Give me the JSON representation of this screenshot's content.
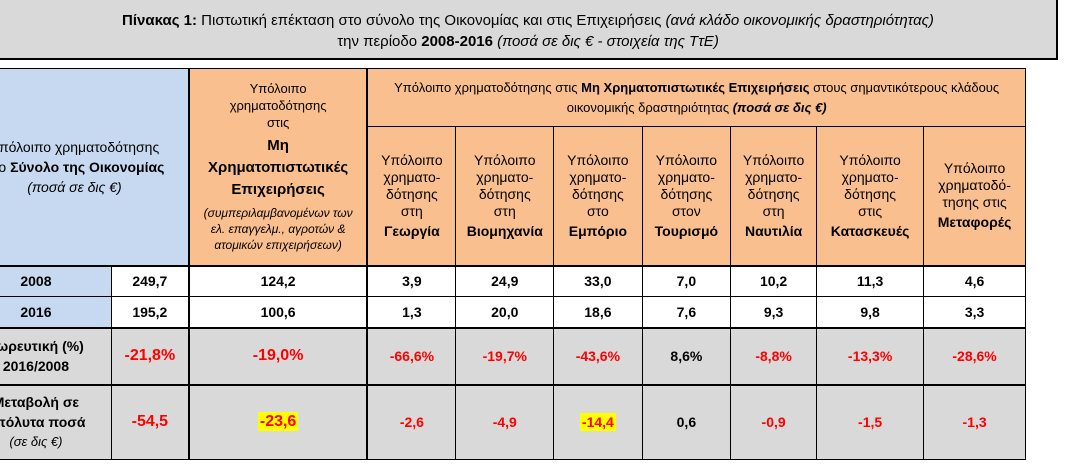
{
  "title": {
    "prefix": "Πίνακας 1:",
    "main": " Πιστωτική επέκταση στο σύνολο της Οικονομίας και στις Επιχειρήσεις ",
    "paren1": "(ανά κλάδο οικονομικής δραστηριότητας)",
    "line2_pre": "την περίοδο ",
    "period": "2008-2016",
    "paren2": " (ποσά σε δις € - στοιχεία της ΤτΕ)"
  },
  "header": {
    "economy_line1": "Υπόλοιπο χρηματοδότησης",
    "economy_line2_pre": "στο ",
    "economy_line2_bold": "Σύνολο της Οικονομίας",
    "economy_line3": "(ποσά σε δις €)",
    "nfc_line1": "Υπόλοιπο χρηματοδότησης στις",
    "nfc_bold": "Μη Χρηματοπιστωτικές Επιχειρήσεις",
    "nfc_note": "(συμπεριλαμβανομένων των ελ. επαγγελμ., αγροτών & ατομικών επιχειρήσεων)",
    "sector_pre": "Υπόλοιπο χρηματοδότησης στις ",
    "sector_bold": "Μη Χρηματοπιστωτικές Επιχειρήσεις",
    "sector_post": " στους σημαντικότερους κλάδους  οικονομικής δραστηριότητας ",
    "sector_paren": "(ποσά σε δις €)"
  },
  "sectors": [
    {
      "pre": "Υπόλοιπο χρηματο-δότησης στη",
      "name": "Γεωργία"
    },
    {
      "pre": "Υπόλοιπο χρηματο-δότησης στη",
      "name": "Βιομηχανία"
    },
    {
      "pre": "Υπόλοιπο χρηματο-δότησης στο",
      "name": "Εμπόριο"
    },
    {
      "pre": "Υπόλοιπο χρηματο-δότησης στον",
      "name": "Τουρισμό"
    },
    {
      "pre": "Υπόλοιπο χρηματο-δότησης στη",
      "name": "Ναυτιλία"
    },
    {
      "pre": "Υπόλοιπο χρηματο-δότησης στις",
      "name": "Κατασκευές"
    },
    {
      "pre": "Υπόλοιπο χρηματοδό-τησης στις",
      "name": "Μεταφορές"
    }
  ],
  "rows": {
    "y2008": {
      "label": "2008",
      "economy": "249,7",
      "nfc": "124,2",
      "sectors": [
        "3,9",
        "24,9",
        "33,0",
        "7,0",
        "10,2",
        "11,3",
        "4,6"
      ]
    },
    "y2016": {
      "label": "2016",
      "economy": "195,2",
      "nfc": "100,6",
      "sectors": [
        "1,3",
        "20,0",
        "18,6",
        "7,6",
        "9,3",
        "9,8",
        "3,3"
      ]
    },
    "pct": {
      "label1": "Σωρευτική (%)",
      "label2": "2016/2008",
      "economy": "-21,8%",
      "nfc": "-19,0%",
      "sectors": [
        "-66,6%",
        "-19,7%",
        "-43,6%",
        "8,6%",
        "-8,8%",
        "-13,3%",
        "-28,6%"
      ]
    },
    "abs": {
      "label1": "Μεταβολή σε",
      "label2": "απόλυτα ποσά",
      "label3": "(σε δις €)",
      "economy": "-54,5",
      "nfc": "-23,6",
      "sectors": [
        "-2,6",
        "-4,9",
        "-14,4",
        "0,6",
        "-0,9",
        "-1,5",
        "-1,3"
      ]
    }
  },
  "colors": {
    "header_blue": "#c6d9f1",
    "header_orange": "#fabf8f",
    "row_gray": "#d9d9d9",
    "negative": "#ff0000",
    "highlight": "#ffff00"
  }
}
